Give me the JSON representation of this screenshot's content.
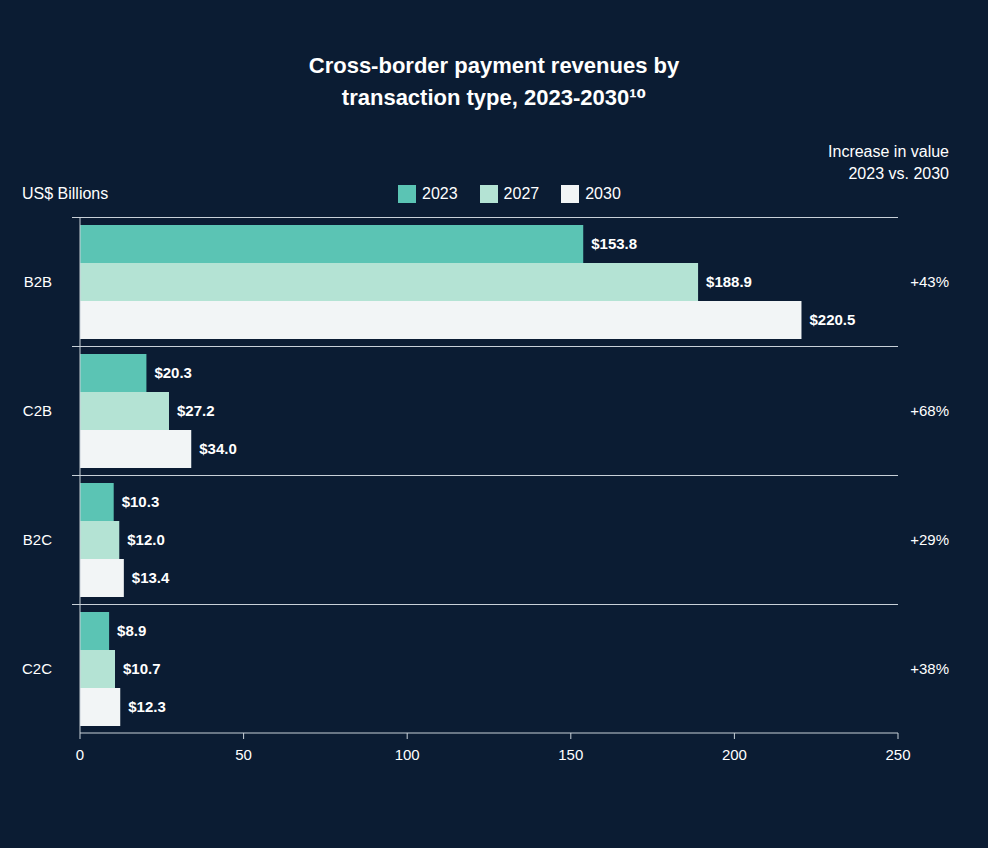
{
  "chart_data": {
    "type": "bar",
    "title": "Cross-border payment revenues by transaction type, 2023-2030¹⁰",
    "xlabel": "US$ Billions",
    "orientation": "horizontal",
    "categories": [
      "B2B",
      "C2B",
      "B2C",
      "C2C"
    ],
    "series": [
      {
        "name": "2023",
        "color": "#5bc4b4",
        "values": [
          153.8,
          20.3,
          10.3,
          8.9
        ],
        "value_labels": [
          "$153.8",
          "$20.3",
          "$10.3",
          "$8.9"
        ]
      },
      {
        "name": "2027",
        "color": "#b4e3d4",
        "values": [
          188.9,
          27.2,
          12.0,
          10.7
        ],
        "value_labels": [
          "$188.9",
          "$27.2",
          "$12.0",
          "$10.7"
        ]
      },
      {
        "name": "2030",
        "color": "#f2f5f6",
        "values": [
          220.5,
          34.0,
          13.4,
          12.3
        ],
        "value_labels": [
          "$220.5",
          "$34.0",
          "$13.4",
          "$12.3"
        ]
      }
    ],
    "xlim": [
      0,
      250
    ],
    "xticks": [
      0,
      50,
      100,
      150,
      200,
      250
    ],
    "grid": false,
    "data_labels": true,
    "increase": {
      "title": "Increase in value 2023 vs. 2030",
      "values": [
        43,
        68,
        29,
        38
      ],
      "value_labels": [
        "+43%",
        "+68%",
        "+29%",
        "+38%"
      ]
    }
  }
}
